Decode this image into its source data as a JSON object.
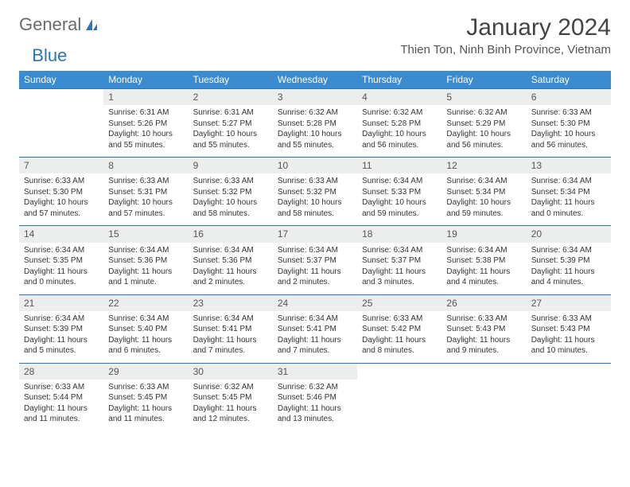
{
  "logo": {
    "text1": "General",
    "text2": "Blue"
  },
  "title": "January 2024",
  "location": "Thien Ton, Ninh Binh Province, Vietnam",
  "colors": {
    "header_bg": "#3a8bd0",
    "header_text": "#ffffff",
    "daynum_bg": "#eceded",
    "row_border": "#2a74b8",
    "logo_gray": "#6b6b6b",
    "logo_blue": "#2a74b8"
  },
  "weekdays": [
    "Sunday",
    "Monday",
    "Tuesday",
    "Wednesday",
    "Thursday",
    "Friday",
    "Saturday"
  ],
  "start_offset": 1,
  "days": [
    {
      "n": 1,
      "sr": "6:31 AM",
      "ss": "5:26 PM",
      "dl": "10 hours and 55 minutes."
    },
    {
      "n": 2,
      "sr": "6:31 AM",
      "ss": "5:27 PM",
      "dl": "10 hours and 55 minutes."
    },
    {
      "n": 3,
      "sr": "6:32 AM",
      "ss": "5:28 PM",
      "dl": "10 hours and 55 minutes."
    },
    {
      "n": 4,
      "sr": "6:32 AM",
      "ss": "5:28 PM",
      "dl": "10 hours and 56 minutes."
    },
    {
      "n": 5,
      "sr": "6:32 AM",
      "ss": "5:29 PM",
      "dl": "10 hours and 56 minutes."
    },
    {
      "n": 6,
      "sr": "6:33 AM",
      "ss": "5:30 PM",
      "dl": "10 hours and 56 minutes."
    },
    {
      "n": 7,
      "sr": "6:33 AM",
      "ss": "5:30 PM",
      "dl": "10 hours and 57 minutes."
    },
    {
      "n": 8,
      "sr": "6:33 AM",
      "ss": "5:31 PM",
      "dl": "10 hours and 57 minutes."
    },
    {
      "n": 9,
      "sr": "6:33 AM",
      "ss": "5:32 PM",
      "dl": "10 hours and 58 minutes."
    },
    {
      "n": 10,
      "sr": "6:33 AM",
      "ss": "5:32 PM",
      "dl": "10 hours and 58 minutes."
    },
    {
      "n": 11,
      "sr": "6:34 AM",
      "ss": "5:33 PM",
      "dl": "10 hours and 59 minutes."
    },
    {
      "n": 12,
      "sr": "6:34 AM",
      "ss": "5:34 PM",
      "dl": "10 hours and 59 minutes."
    },
    {
      "n": 13,
      "sr": "6:34 AM",
      "ss": "5:34 PM",
      "dl": "11 hours and 0 minutes."
    },
    {
      "n": 14,
      "sr": "6:34 AM",
      "ss": "5:35 PM",
      "dl": "11 hours and 0 minutes."
    },
    {
      "n": 15,
      "sr": "6:34 AM",
      "ss": "5:36 PM",
      "dl": "11 hours and 1 minute."
    },
    {
      "n": 16,
      "sr": "6:34 AM",
      "ss": "5:36 PM",
      "dl": "11 hours and 2 minutes."
    },
    {
      "n": 17,
      "sr": "6:34 AM",
      "ss": "5:37 PM",
      "dl": "11 hours and 2 minutes."
    },
    {
      "n": 18,
      "sr": "6:34 AM",
      "ss": "5:37 PM",
      "dl": "11 hours and 3 minutes."
    },
    {
      "n": 19,
      "sr": "6:34 AM",
      "ss": "5:38 PM",
      "dl": "11 hours and 4 minutes."
    },
    {
      "n": 20,
      "sr": "6:34 AM",
      "ss": "5:39 PM",
      "dl": "11 hours and 4 minutes."
    },
    {
      "n": 21,
      "sr": "6:34 AM",
      "ss": "5:39 PM",
      "dl": "11 hours and 5 minutes."
    },
    {
      "n": 22,
      "sr": "6:34 AM",
      "ss": "5:40 PM",
      "dl": "11 hours and 6 minutes."
    },
    {
      "n": 23,
      "sr": "6:34 AM",
      "ss": "5:41 PM",
      "dl": "11 hours and 7 minutes."
    },
    {
      "n": 24,
      "sr": "6:34 AM",
      "ss": "5:41 PM",
      "dl": "11 hours and 7 minutes."
    },
    {
      "n": 25,
      "sr": "6:33 AM",
      "ss": "5:42 PM",
      "dl": "11 hours and 8 minutes."
    },
    {
      "n": 26,
      "sr": "6:33 AM",
      "ss": "5:43 PM",
      "dl": "11 hours and 9 minutes."
    },
    {
      "n": 27,
      "sr": "6:33 AM",
      "ss": "5:43 PM",
      "dl": "11 hours and 10 minutes."
    },
    {
      "n": 28,
      "sr": "6:33 AM",
      "ss": "5:44 PM",
      "dl": "11 hours and 11 minutes."
    },
    {
      "n": 29,
      "sr": "6:33 AM",
      "ss": "5:45 PM",
      "dl": "11 hours and 11 minutes."
    },
    {
      "n": 30,
      "sr": "6:32 AM",
      "ss": "5:45 PM",
      "dl": "11 hours and 12 minutes."
    },
    {
      "n": 31,
      "sr": "6:32 AM",
      "ss": "5:46 PM",
      "dl": "11 hours and 13 minutes."
    }
  ],
  "labels": {
    "sunrise": "Sunrise:",
    "sunset": "Sunset:",
    "daylight": "Daylight:"
  }
}
